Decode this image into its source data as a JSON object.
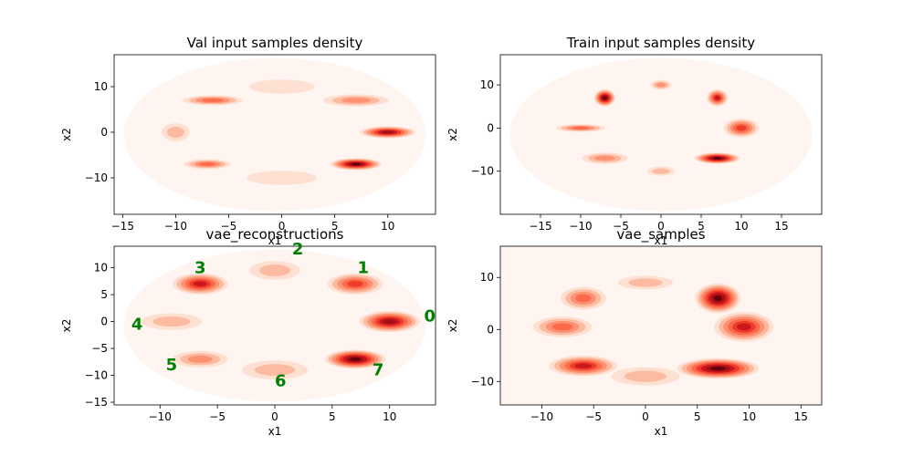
{
  "colors": {
    "background": "#ffffff",
    "palette": [
      "#fff5f0",
      "#fee0d2",
      "#fcbba1",
      "#fc9272",
      "#fb6a4a",
      "#ef3b2c",
      "#cb181d",
      "#a50f15",
      "#67000d"
    ],
    "annotation": "#008000"
  },
  "chart_data": [
    {
      "type": "heatmap",
      "title": "Val input samples density",
      "xlabel": "x1",
      "ylabel": "x2",
      "xlim": [
        -15.8,
        14.5
      ],
      "ylim": [
        -18,
        17
      ],
      "xticks": [
        -15,
        -10,
        -5,
        0,
        5,
        10
      ],
      "yticks": [
        -10,
        0,
        10
      ],
      "background_level": 0,
      "blobs": [
        {
          "x": -6.5,
          "y": 7,
          "sx": 1.3,
          "sy": 0.5,
          "intensity": 4
        },
        {
          "x": 7,
          "y": 7,
          "sx": 1.4,
          "sy": 0.6,
          "intensity": 3
        },
        {
          "x": 10,
          "y": 0,
          "sx": 1.2,
          "sy": 0.6,
          "intensity": 7
        },
        {
          "x": -10,
          "y": 0,
          "sx": 0.6,
          "sy": 0.9,
          "intensity": 2
        },
        {
          "x": -7,
          "y": -7,
          "sx": 1.0,
          "sy": 0.5,
          "intensity": 4
        },
        {
          "x": 7,
          "y": -7,
          "sx": 1.1,
          "sy": 0.6,
          "intensity": 8
        },
        {
          "x": 0,
          "y": 10,
          "sx": 1.4,
          "sy": 0.7,
          "intensity": 1
        },
        {
          "x": 0,
          "y": -10,
          "sx": 1.5,
          "sy": 0.7,
          "intensity": 1
        }
      ]
    },
    {
      "type": "heatmap",
      "title": "Train input samples density",
      "xlabel": "x1",
      "ylabel": "x2",
      "xlim": [
        -20,
        20
      ],
      "ylim": [
        -20,
        17
      ],
      "xticks": [
        -15,
        -10,
        -5,
        0,
        5,
        10,
        15
      ],
      "yticks": [
        -10,
        0,
        10
      ],
      "background_level": 0,
      "blobs": [
        {
          "x": -7,
          "y": 7,
          "sx": 0.6,
          "sy": 0.9,
          "intensity": 8
        },
        {
          "x": 7,
          "y": 7,
          "sx": 0.6,
          "sy": 0.9,
          "intensity": 6
        },
        {
          "x": 0,
          "y": 10,
          "sx": 0.6,
          "sy": 0.5,
          "intensity": 3
        },
        {
          "x": 10,
          "y": 0,
          "sx": 1.0,
          "sy": 1.0,
          "intensity": 5
        },
        {
          "x": -10,
          "y": 0,
          "sx": 1.4,
          "sy": 0.4,
          "intensity": 4
        },
        {
          "x": -7,
          "y": -7,
          "sx": 1.3,
          "sy": 0.6,
          "intensity": 3
        },
        {
          "x": 7,
          "y": -7,
          "sx": 1.3,
          "sy": 0.6,
          "intensity": 8
        },
        {
          "x": 0,
          "y": -10,
          "sx": 0.8,
          "sy": 0.5,
          "intensity": 2
        }
      ]
    },
    {
      "type": "heatmap",
      "title": "vae_reconstructions",
      "xlabel": "x1",
      "ylabel": "x2",
      "xlim": [
        -14,
        14
      ],
      "ylim": [
        -15.5,
        14
      ],
      "xticks": [
        -10,
        -5,
        0,
        5,
        10
      ],
      "yticks": [
        -15,
        -10,
        -5,
        0,
        5,
        10
      ],
      "background_level": 0,
      "annotations": [
        {
          "text": "0",
          "x": 13.5,
          "y": 1
        },
        {
          "text": "1",
          "x": 7.7,
          "y": 10
        },
        {
          "text": "2",
          "x": 2,
          "y": 13.5
        },
        {
          "text": "3",
          "x": -6.5,
          "y": 10
        },
        {
          "text": "4",
          "x": -12,
          "y": -0.5
        },
        {
          "text": "5",
          "x": -9,
          "y": -8
        },
        {
          "text": "6",
          "x": 0.5,
          "y": -11
        },
        {
          "text": "7",
          "x": 9,
          "y": -9
        }
      ],
      "blobs": [
        {
          "x": 10,
          "y": 0,
          "sx": 1.2,
          "sy": 0.9,
          "intensity": 7
        },
        {
          "x": 7,
          "y": 7,
          "sx": 1.1,
          "sy": 0.9,
          "intensity": 5
        },
        {
          "x": 0,
          "y": 9.5,
          "sx": 1.0,
          "sy": 0.8,
          "intensity": 2
        },
        {
          "x": -6.5,
          "y": 7,
          "sx": 1.1,
          "sy": 0.9,
          "intensity": 6
        },
        {
          "x": -9,
          "y": 0,
          "sx": 1.2,
          "sy": 0.7,
          "intensity": 2
        },
        {
          "x": -6.5,
          "y": -7,
          "sx": 1.1,
          "sy": 0.7,
          "intensity": 3
        },
        {
          "x": 0,
          "y": -9,
          "sx": 1.3,
          "sy": 0.8,
          "intensity": 2
        },
        {
          "x": 7,
          "y": -7,
          "sx": 1.2,
          "sy": 0.8,
          "intensity": 8
        }
      ]
    },
    {
      "type": "heatmap",
      "title": "vae_samples",
      "xlabel": "x1",
      "ylabel": "x2",
      "xlim": [
        -14,
        17
      ],
      "ylim": [
        -14.5,
        16
      ],
      "xticks": [
        -10,
        -5,
        0,
        5,
        10,
        15
      ],
      "yticks": [
        -10,
        0,
        10
      ],
      "background_level": 1,
      "blobs": [
        {
          "x": -6,
          "y": 6,
          "sx": 1.0,
          "sy": 1.0,
          "intensity": 4
        },
        {
          "x": -8,
          "y": 0.5,
          "sx": 1.3,
          "sy": 0.9,
          "intensity": 4
        },
        {
          "x": -6,
          "y": -7,
          "sx": 1.5,
          "sy": 0.9,
          "intensity": 6
        },
        {
          "x": 0,
          "y": -9,
          "sx": 1.5,
          "sy": 0.8,
          "intensity": 2
        },
        {
          "x": 7,
          "y": 6,
          "sx": 1.0,
          "sy": 1.3,
          "intensity": 8
        },
        {
          "x": 9.5,
          "y": 0.5,
          "sx": 1.3,
          "sy": 1.3,
          "intensity": 6
        },
        {
          "x": 7,
          "y": -7.5,
          "sx": 1.8,
          "sy": 0.9,
          "intensity": 8
        },
        {
          "x": 0,
          "y": 9,
          "sx": 1.2,
          "sy": 0.6,
          "intensity": 2
        }
      ]
    }
  ]
}
